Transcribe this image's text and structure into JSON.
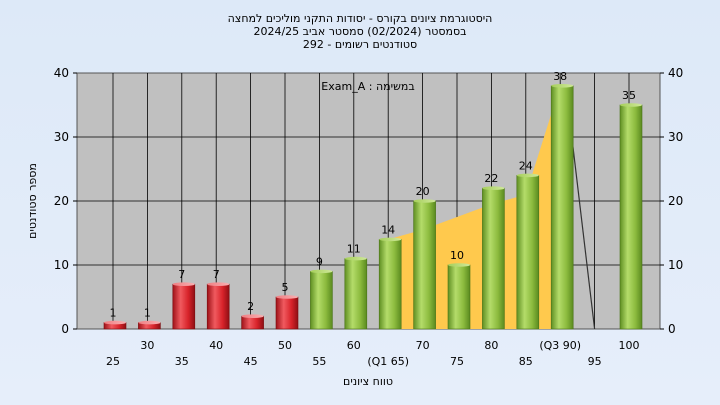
{
  "header": {
    "title_line1": "היסטוגרמת ציונים בקורס - יסודות התקני מוליכים למחצה",
    "title_line2": "בסמסטר  (02/2024)  סמסטר אביב 2024/25",
    "title_line3": "סטודנטים רשומים - 292"
  },
  "chart_data": {
    "type": "bar",
    "xlabel": "טווח ציונים",
    "ylabel": "מספר סטודנטים",
    "ylim": [
      0,
      40
    ],
    "yticks": [
      0,
      10,
      20,
      30,
      40
    ],
    "grid": true,
    "annotation": "במשימה : Exam_A",
    "categories": [
      "25",
      "30",
      "35",
      "40",
      "45",
      "50",
      "55",
      "60",
      "(Q1 65)",
      "70",
      "75",
      "80",
      "85",
      "(Q3 90)",
      "95",
      "100"
    ],
    "values": [
      1,
      1,
      7,
      7,
      2,
      5,
      9,
      11,
      14,
      20,
      10,
      22,
      24,
      38,
      0,
      35
    ],
    "bar_colors": [
      "red",
      "red",
      "red",
      "red",
      "red",
      "red",
      "green",
      "green",
      "green",
      "green",
      "green",
      "green",
      "green",
      "green",
      "green",
      "green"
    ],
    "shaded_band": {
      "start_category": "(Q1 65)",
      "end_category": "(Q3 90)",
      "values": [
        14,
        15.5,
        17.5,
        19.5,
        21,
        38
      ],
      "color": "#ffc94d"
    },
    "colors": {
      "red": "#d8232a",
      "green": "#8fbf3c",
      "plot_bg": "#c0c0c0",
      "band": "#ffc94d"
    }
  }
}
